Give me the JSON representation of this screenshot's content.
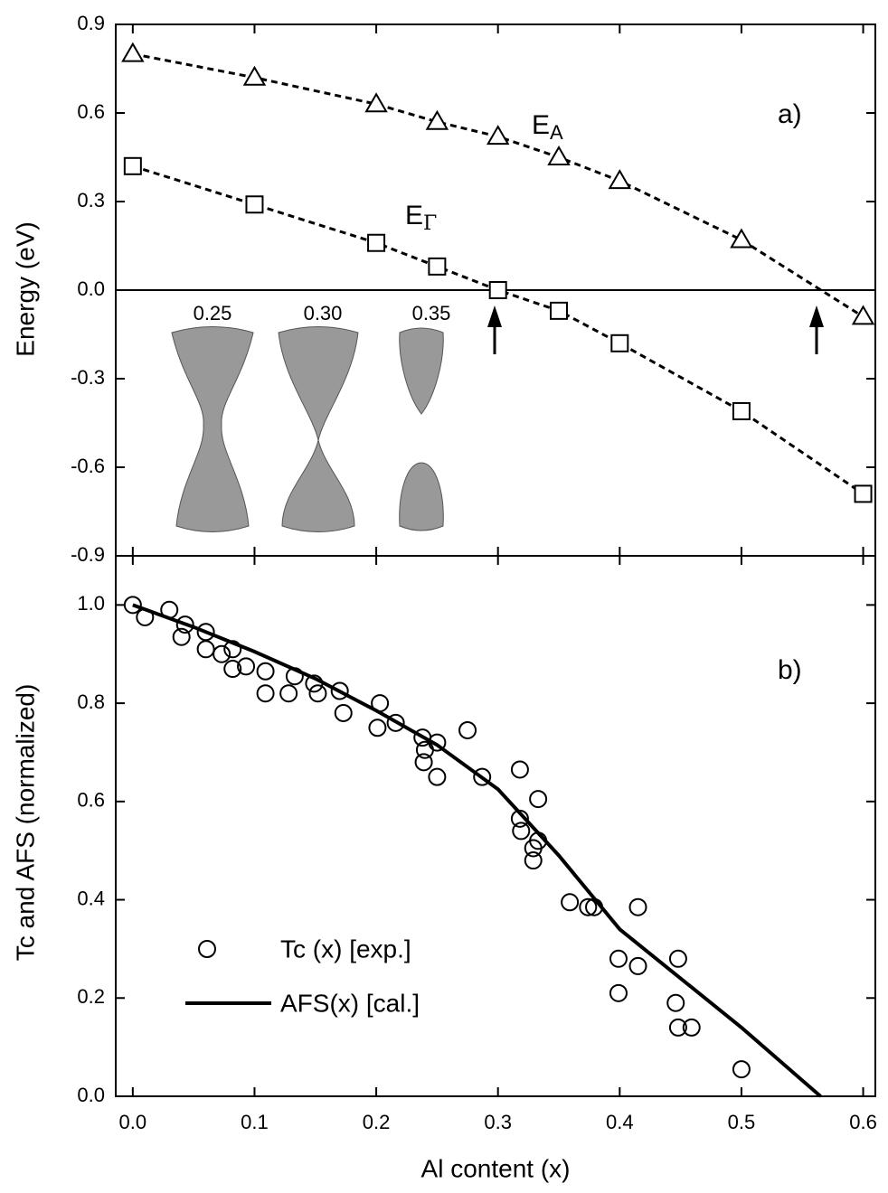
{
  "chart_data": [
    {
      "type": "line",
      "ylabel": "Energy (eV)",
      "xlim": [
        -0.014,
        0.61
      ],
      "ylim": [
        -0.9,
        0.9
      ],
      "xticks": [
        0,
        0.1,
        0.2,
        0.3,
        0.4,
        0.5,
        0.6
      ],
      "yticks": [
        0.9,
        0.6,
        0.3,
        {
          "value": 0,
          "label": "0.0"
        },
        -0.3,
        -0.6,
        -0.9
      ],
      "series": [
        {
          "marker": "triangle",
          "dashed": true,
          "color": "#000000",
          "x": [
            0,
            0.1,
            0.2,
            0.25,
            0.3,
            0.35,
            0.4,
            0.5,
            0.6
          ],
          "values": [
            0.8,
            0.72,
            0.63,
            0.57,
            0.52,
            0.45,
            0.37,
            0.17,
            -0.09
          ]
        },
        {
          "marker": "square",
          "dashed": true,
          "color": "#000000",
          "x": [
            0,
            0.1,
            0.2,
            0.25,
            0.3,
            0.35,
            0.4,
            0.5,
            0.6
          ],
          "values": [
            0.42,
            0.29,
            0.16,
            0.08,
            0.0,
            -0.07,
            -0.18,
            -0.41,
            -0.69
          ]
        }
      ],
      "annotations": [
        {
          "text": "E",
          "sub": "A"
        },
        {
          "text": "E",
          "sub": "Γ"
        },
        {
          "text": "a)"
        },
        {
          "text": "0.25"
        },
        {
          "text": "0.30"
        },
        {
          "text": "0.35"
        }
      ]
    },
    {
      "type": "scatter",
      "xlabel": "Al content (x)",
      "ylabel": "Tc and AFS (normalized)",
      "xlim": [
        -0.014,
        0.61
      ],
      "ylim": [
        0,
        1.1
      ],
      "xticks": [
        {
          "value": 0,
          "label": "0.0"
        },
        0.1,
        0.2,
        0.3,
        0.4,
        0.5,
        0.6
      ],
      "yticks": [
        {
          "value": 0,
          "label": "0.0"
        },
        0.2,
        0.4,
        0.6,
        0.8,
        {
          "value": 1,
          "label": "1.0"
        }
      ],
      "series": [
        {
          "name": "Tc (x) [exp.]",
          "marker": "circle",
          "color": "#000000",
          "x": [
            0,
            0.01,
            0.03,
            0.043,
            0.04,
            0.06,
            0.06,
            0.073,
            0.082,
            0.082,
            0.093,
            0.109,
            0.109,
            0.128,
            0.133,
            0.149,
            0.152,
            0.17,
            0.173,
            0.203,
            0.201,
            0.216,
            0.238,
            0.239,
            0.24,
            0.25,
            0.25,
            0.275,
            0.287,
            0.318,
            0.318,
            0.319,
            0.329,
            0.329,
            0.333,
            0.333,
            0.359,
            0.374,
            0.379,
            0.415,
            0.399,
            0.399,
            0.415,
            0.448,
            0.446,
            0.448,
            0.459,
            0.5
          ],
          "values": [
            1.0,
            0.975,
            0.99,
            0.96,
            0.935,
            0.945,
            0.91,
            0.9,
            0.91,
            0.87,
            0.875,
            0.865,
            0.82,
            0.82,
            0.855,
            0.84,
            0.82,
            0.825,
            0.78,
            0.8,
            0.75,
            0.76,
            0.73,
            0.68,
            0.705,
            0.72,
            0.65,
            0.745,
            0.65,
            0.665,
            0.565,
            0.54,
            0.505,
            0.48,
            0.52,
            0.605,
            0.395,
            0.385,
            0.385,
            0.385,
            0.28,
            0.21,
            0.265,
            0.28,
            0.19,
            0.14,
            0.14,
            0.055
          ]
        },
        {
          "name": "AFS(x) [cal.]",
          "marker": "none",
          "color": "#000000",
          "x": [
            0,
            0.05,
            0.1,
            0.15,
            0.2,
            0.25,
            0.3,
            0.35,
            0.4,
            0.45,
            0.5,
            0.565
          ],
          "values": [
            1.0,
            0.955,
            0.905,
            0.85,
            0.785,
            0.715,
            0.625,
            0.49,
            0.34,
            0.24,
            0.14,
            0.0
          ]
        }
      ],
      "annotations": [
        {
          "text": "b)"
        }
      ]
    }
  ]
}
